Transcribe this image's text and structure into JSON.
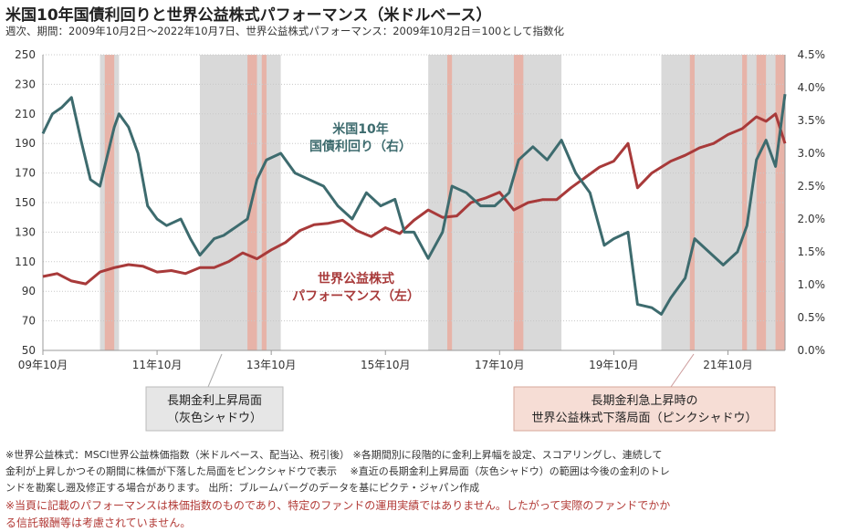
{
  "title": "米国10年国債利回りと世界公益株式パフォーマンス（米ドルベース）",
  "subtitle": "週次、期間：2009年10月2日～2022年10月7日、世界公益株式パフォーマンス：2009年10月2日＝100として指数化",
  "legend": {
    "gray_line1": "長期金利上昇局面",
    "gray_line2": "（灰色シャドウ）",
    "pink_line1": "長期金利急上昇時の",
    "pink_line2": "世界公益株式下落局面（ピンクシャドウ）"
  },
  "notes": {
    "line1": "※世界公益株式：MSCI世界公益株価指数（米ドルベース、配当込、税引後）  ※各期間別に段階的に金利上昇幅を設定、スコアリングし、連続して",
    "line2": "金利が上昇しかつその期間に株価が下落した局面をピンクシャドウで表示　 ※直近の長期金利上昇局面（灰色シャドウ）の範囲は今後の金利のトレ",
    "line3": "ンドを勘案し遡及修正する場合があります。  出所：ブルームバーグのデータを基にピクテ・ジャパン作成",
    "warn1": "※当頁に記載のパフォーマンスは株価指数のものであり、特定のファンドの運用実績ではありません。したがって実際のファンドでかか",
    "warn2": "る信託報酬等は考慮されていません。"
  },
  "colors": {
    "teal": "#3d6b6e",
    "red": "#a83a3a",
    "gray_shade": "#d9d9d9",
    "pink_shade": "#e7b3a8"
  },
  "chart_data": {
    "type": "line",
    "x_start": "2009-10",
    "x_end": "2022-10",
    "x_tick_labels": [
      "09年10月",
      "11年10月",
      "13年10月",
      "15年10月",
      "17年10月",
      "19年10月",
      "21年10月"
    ],
    "y_left_ticks": [
      "250",
      "230",
      "210",
      "190",
      "170",
      "150",
      "130",
      "110",
      "90",
      "70",
      "50"
    ],
    "y_right_ticks": [
      "4.5%",
      "4.0%",
      "3.5%",
      "3.0%",
      "2.5%",
      "2.0%",
      "1.5%",
      "1.0%",
      "0.5%",
      "0.0%"
    ],
    "ylim_left": [
      50,
      250
    ],
    "ylim_right": [
      0,
      4.5
    ],
    "gray_shadows": [
      [
        "2010-10",
        "2011-02"
      ],
      [
        "2012-07",
        "2013-12"
      ],
      [
        "2016-07",
        "2018-11"
      ],
      [
        "2020-08",
        "2022-10"
      ]
    ],
    "pink_shadows": [
      [
        "2010-11",
        "2011-01"
      ],
      [
        "2013-05",
        "2013-07"
      ],
      [
        "2013-08",
        "2013-09"
      ],
      [
        "2016-11",
        "2016-12"
      ],
      [
        "2018-01",
        "2018-03"
      ],
      [
        "2021-02",
        "2021-03"
      ],
      [
        "2022-01",
        "2022-02"
      ],
      [
        "2022-04",
        "2022-06"
      ],
      [
        "2022-08",
        "2022-10"
      ]
    ],
    "series": [
      {
        "name": "世界公益株式\nパフォーマンス（左）",
        "axis": "left",
        "x": [
          "2009-10",
          "2010-01",
          "2010-04",
          "2010-07",
          "2010-10",
          "2011-01",
          "2011-04",
          "2011-07",
          "2011-10",
          "2012-01",
          "2012-04",
          "2012-07",
          "2012-10",
          "2013-01",
          "2013-04",
          "2013-07",
          "2013-10",
          "2014-01",
          "2014-04",
          "2014-07",
          "2014-10",
          "2015-01",
          "2015-04",
          "2015-07",
          "2015-10",
          "2016-01",
          "2016-04",
          "2016-07",
          "2016-10",
          "2017-01",
          "2017-04",
          "2017-07",
          "2017-10",
          "2018-01",
          "2018-04",
          "2018-07",
          "2018-10",
          "2019-01",
          "2019-04",
          "2019-07",
          "2019-10",
          "2020-01",
          "2020-03",
          "2020-06",
          "2020-10",
          "2021-01",
          "2021-04",
          "2021-07",
          "2021-10",
          "2022-01",
          "2022-04",
          "2022-06",
          "2022-08",
          "2022-10"
        ],
        "values": [
          100,
          102,
          97,
          95,
          103,
          106,
          108,
          107,
          103,
          104,
          102,
          106,
          106,
          110,
          116,
          112,
          118,
          123,
          131,
          135,
          136,
          138,
          131,
          127,
          133,
          129,
          138,
          145,
          140,
          141,
          150,
          153,
          157,
          145,
          150,
          152,
          152,
          160,
          167,
          174,
          178,
          190,
          160,
          170,
          178,
          182,
          187,
          190,
          196,
          200,
          208,
          205,
          210,
          190
        ]
      },
      {
        "name": "米国10年\n国債利回り（右）",
        "axis": "right",
        "x": [
          "2009-10",
          "2009-12",
          "2010-02",
          "2010-04",
          "2010-06",
          "2010-08",
          "2010-10",
          "2011-01",
          "2011-02",
          "2011-04",
          "2011-06",
          "2011-08",
          "2011-10",
          "2011-12",
          "2012-03",
          "2012-05",
          "2012-07",
          "2012-10",
          "2012-12",
          "2013-03",
          "2013-05",
          "2013-07",
          "2013-09",
          "2013-12",
          "2014-03",
          "2014-06",
          "2014-09",
          "2014-12",
          "2015-03",
          "2015-06",
          "2015-09",
          "2015-12",
          "2016-02",
          "2016-04",
          "2016-07",
          "2016-10",
          "2016-12",
          "2017-03",
          "2017-06",
          "2017-09",
          "2017-12",
          "2018-02",
          "2018-05",
          "2018-08",
          "2018-11",
          "2019-02",
          "2019-05",
          "2019-08",
          "2019-10",
          "2020-01",
          "2020-03",
          "2020-06",
          "2020-08",
          "2020-10",
          "2021-01",
          "2021-03",
          "2021-06",
          "2021-09",
          "2021-12",
          "2022-02",
          "2022-04",
          "2022-06",
          "2022-08",
          "2022-10"
        ],
        "values": [
          3.3,
          3.6,
          3.7,
          3.85,
          3.2,
          2.6,
          2.5,
          3.4,
          3.6,
          3.4,
          3.0,
          2.2,
          2.0,
          1.9,
          2.0,
          1.7,
          1.45,
          1.7,
          1.75,
          1.9,
          2.0,
          2.6,
          2.9,
          3.0,
          2.7,
          2.6,
          2.5,
          2.2,
          2.0,
          2.4,
          2.2,
          2.3,
          1.8,
          1.8,
          1.4,
          1.8,
          2.5,
          2.4,
          2.2,
          2.2,
          2.4,
          2.9,
          3.1,
          2.9,
          3.2,
          2.7,
          2.4,
          1.6,
          1.7,
          1.8,
          0.7,
          0.65,
          0.55,
          0.8,
          1.1,
          1.7,
          1.5,
          1.3,
          1.5,
          1.9,
          2.9,
          3.2,
          2.8,
          3.9
        ]
      }
    ]
  }
}
